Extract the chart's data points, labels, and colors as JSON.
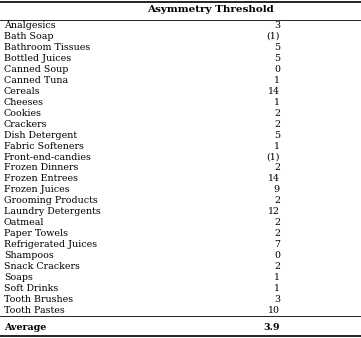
{
  "header": "Asymmetry Threshold",
  "rows": [
    [
      "Analgesics",
      "3"
    ],
    [
      "Bath Soap",
      "(1)"
    ],
    [
      "Bathroom Tissues",
      "5"
    ],
    [
      "Bottled Juices",
      "5"
    ],
    [
      "Canned Soup",
      "0"
    ],
    [
      "Canned Tuna",
      "1"
    ],
    [
      "Cereals",
      "14"
    ],
    [
      "Cheeses",
      "1"
    ],
    [
      "Cookies",
      "2"
    ],
    [
      "Crackers",
      "2"
    ],
    [
      "Dish Detergent",
      "5"
    ],
    [
      "Fabric Softeners",
      "1"
    ],
    [
      "Front-end-candies",
      "(1)"
    ],
    [
      "Frozen Dinners",
      "2"
    ],
    [
      "Frozen Entrees",
      "14"
    ],
    [
      "Frozen Juices",
      "9"
    ],
    [
      "Grooming Products",
      "2"
    ],
    [
      "Laundry Detergents",
      "12"
    ],
    [
      "Oatmeal",
      "2"
    ],
    [
      "Paper Towels",
      "2"
    ],
    [
      "Refrigerated Juices",
      "7"
    ],
    [
      "Shampoos",
      "0"
    ],
    [
      "Snack Crackers",
      "2"
    ],
    [
      "Soaps",
      "1"
    ],
    [
      "Soft Drinks",
      "1"
    ],
    [
      "Tooth Brushes",
      "3"
    ],
    [
      "Tooth Pastes",
      "10"
    ]
  ],
  "average_label": "Average",
  "average_value": "3.9",
  "bg_color": "#ffffff",
  "text_color": "#000000",
  "font_size": 6.8,
  "header_font_size": 7.5
}
